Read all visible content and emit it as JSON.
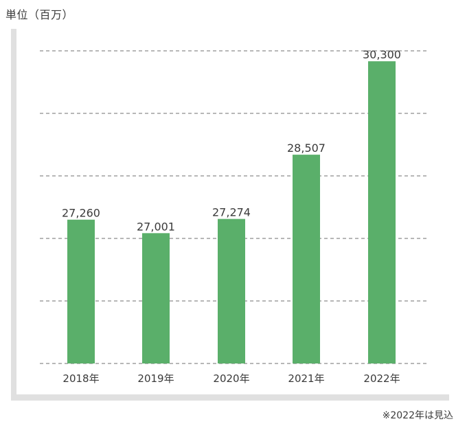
{
  "unit_label": "単位（百万）",
  "footnote": "※2022年は見込",
  "colors": {
    "bar": "#5aaf6a",
    "axis": "#e0e0e0",
    "grid": "#6f6f6f",
    "text": "#3a3a3a"
  },
  "chart_data": {
    "type": "bar",
    "categories": [
      "2018年",
      "2019年",
      "2020年",
      "2021年",
      "2022年"
    ],
    "values": [
      27260,
      27001,
      27274,
      28507,
      30300
    ],
    "value_labels": [
      "27,260",
      "27,001",
      "27,274",
      "28,507",
      "30,300"
    ],
    "ylabel": "単位（百万）",
    "ylim": [
      24500,
      30500
    ],
    "grid": "horizontal dashed",
    "legend": "none"
  }
}
